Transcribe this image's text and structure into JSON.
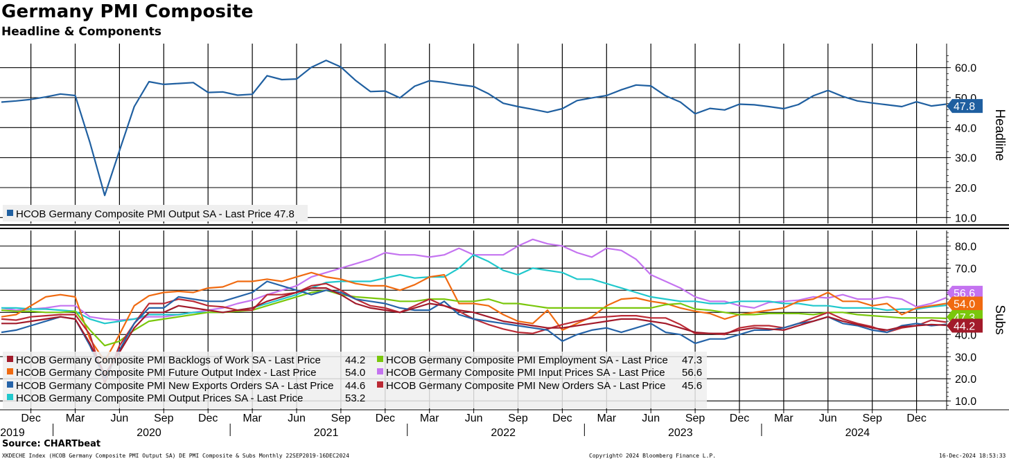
{
  "title": "Germany PMI Composite",
  "subtitle": "Headline & Components",
  "source": "Source: CHARTbeat",
  "footer": {
    "left": "XKDECHE Index (HCOB Germany Composite PMI Output SA) DE PMI Composite & Subs  Monthly 22SEP2019-16DEC2024",
    "center": "Copyright© 2024 Bloomberg Finance L.P.",
    "right": "16-Dec-2024 18:53:33"
  },
  "colors": {
    "headline": "#1f5fa0",
    "backlogs": "#a21a2a",
    "employment": "#7ac70c",
    "future_output": "#f06a10",
    "input_prices": "#c473f0",
    "new_exports": "#2563a8",
    "new_orders": "#bb2a35",
    "output_prices": "#21c8cc"
  },
  "x_axis": {
    "month_ticks": [
      {
        "label": "Dec",
        "index": 2
      },
      {
        "label": "Mar",
        "index": 5
      },
      {
        "label": "Jun",
        "index": 8
      },
      {
        "label": "Sep",
        "index": 11
      },
      {
        "label": "Dec",
        "index": 14
      },
      {
        "label": "Mar",
        "index": 17
      },
      {
        "label": "Jun",
        "index": 20
      },
      {
        "label": "Sep",
        "index": 23
      },
      {
        "label": "Dec",
        "index": 26
      },
      {
        "label": "Mar",
        "index": 29
      },
      {
        "label": "Jun",
        "index": 32
      },
      {
        "label": "Sep",
        "index": 35
      },
      {
        "label": "Dec",
        "index": 38
      },
      {
        "label": "Mar",
        "index": 41
      },
      {
        "label": "Jun",
        "index": 44
      },
      {
        "label": "Sep",
        "index": 47
      },
      {
        "label": "Dec",
        "index": 50
      },
      {
        "label": "Mar",
        "index": 53
      },
      {
        "label": "Jun",
        "index": 56
      },
      {
        "label": "Sep",
        "index": 59
      },
      {
        "label": "Dec",
        "index": 62
      }
    ],
    "year_labels": [
      {
        "label": "2019",
        "index": 0
      },
      {
        "label": "2020",
        "index": 8
      },
      {
        "label": "2021",
        "index": 20
      },
      {
        "label": "2022",
        "index": 32
      },
      {
        "label": "2023",
        "index": 44
      },
      {
        "label": "2024",
        "index": 56
      }
    ]
  },
  "chart_data": [
    {
      "type": "line",
      "panel": "top",
      "axis_title": "Headline",
      "ylim": [
        8,
        68
      ],
      "yticks": [
        "10.0",
        "20.0",
        "30.0",
        "40.0",
        "50.0",
        "60.0"
      ],
      "x_start": "Sep 2019",
      "x_end": "Dec 2024",
      "series": [
        {
          "key": "headline",
          "name": "HCOB Germany Composite PMI Output SA - Last Price 47.8",
          "last_label": "47.8",
          "values": [
            48.5,
            48.9,
            49.4,
            50.2,
            51.2,
            50.7,
            35.0,
            17.4,
            32.3,
            47.0,
            55.3,
            54.4,
            54.7,
            55.0,
            51.7,
            51.9,
            50.8,
            51.1,
            57.3,
            56.0,
            56.2,
            60.1,
            62.4,
            60.2,
            55.7,
            52.0,
            52.2,
            49.9,
            53.8,
            55.6,
            55.1,
            54.3,
            53.7,
            51.3,
            48.1,
            47.0,
            46.1,
            45.1,
            46.3,
            49.0,
            49.9,
            50.7,
            52.6,
            54.2,
            53.9,
            50.6,
            48.5,
            44.6,
            46.4,
            45.9,
            47.8,
            47.6,
            47.0,
            46.3,
            47.7,
            50.6,
            52.4,
            50.4,
            48.9,
            48.2,
            47.6,
            47.0,
            48.6,
            47.2,
            47.8
          ],
          "last_label_y": 47.2
        }
      ]
    },
    {
      "type": "line",
      "panel": "bottom",
      "axis_title": "Subs",
      "ylim": [
        6,
        87
      ],
      "yticks": [
        "10.0",
        "20.0",
        "30.0",
        "40.0",
        "50.0",
        "60.0",
        "70.0",
        "80.0"
      ],
      "x_start": "Sep 2019",
      "x_end": "Dec 2024",
      "legend": [
        {
          "key": "backlogs",
          "name": "HCOB Germany Composite PMI Backlogs of Work SA - Last Price",
          "value": "44.2"
        },
        {
          "key": "employment",
          "name": "HCOB Germany Composite PMI Employment SA - Last Price",
          "value": "47.3"
        },
        {
          "key": "future_output",
          "name": "HCOB Germany Composite PMI Future Output Index - Last Price",
          "value": "54.0"
        },
        {
          "key": "input_prices",
          "name": "HCOB Germany Composite PMI Input Prices SA - Last Price",
          "value": "56.6"
        },
        {
          "key": "new_exports",
          "name": "HCOB Germany Composite PMI New Exports Orders SA - Last Price",
          "value": "44.6"
        },
        {
          "key": "new_orders",
          "name": "HCOB Germany Composite PMI New Orders SA - Last Price",
          "value": "45.6"
        },
        {
          "key": "output_prices",
          "name": "HCOB Germany Composite PMI Output Prices SA - Last Price",
          "value": "53.2"
        }
      ],
      "last_labels": [
        {
          "key": "input_prices",
          "text": "56.6",
          "y": 58.9
        },
        {
          "key": "future_output",
          "text": "54.0",
          "y": 54.0
        },
        {
          "key": "employment",
          "text": "47.3",
          "y": 47.9
        },
        {
          "key": "backlogs",
          "text": "44.2",
          "y": 44.0
        }
      ],
      "series": [
        {
          "key": "input_prices",
          "values": [
            52.0,
            51.0,
            51.5,
            52.0,
            53.0,
            53.0,
            48.0,
            47.0,
            46.5,
            47.0,
            48.0,
            48.0,
            49.0,
            50.0,
            51.0,
            52.0,
            54.0,
            55.5,
            58.0,
            60.0,
            62.0,
            66.0,
            68.0,
            70.0,
            72.0,
            74.0,
            77.0,
            76.0,
            76.0,
            75.0,
            76.0,
            79.0,
            76.0,
            76.0,
            76.0,
            80.0,
            83.0,
            81.0,
            80.0,
            77.0,
            75.0,
            79.0,
            78.0,
            74.0,
            67.0,
            64.0,
            61.0,
            57.0,
            55.0,
            55.0,
            53.0,
            52.0,
            54.5,
            55.0,
            55.5,
            57.0,
            56.5,
            58.0,
            56.0,
            56.0,
            57.0,
            56.0,
            52.5,
            54.0,
            56.6
          ]
        },
        {
          "key": "output_prices",
          "values": [
            52.0,
            52.0,
            51.5,
            51.5,
            51.0,
            50.5,
            47.0,
            45.0,
            46.0,
            47.0,
            49.0,
            49.0,
            49.0,
            50.0,
            50.0,
            50.0,
            51.0,
            52.0,
            54.0,
            56.0,
            58.0,
            61.0,
            63.5,
            64.0,
            64.0,
            64.0,
            65.5,
            67.0,
            65.5,
            66.0,
            66.0,
            70.0,
            76.0,
            73.0,
            69.0,
            67.0,
            70.0,
            69.0,
            68.0,
            65.0,
            65.0,
            63.0,
            61.0,
            59.0,
            57.0,
            56.0,
            55.0,
            55.0,
            54.0,
            54.0,
            55.0,
            55.0,
            55.0,
            54.0,
            54.0,
            53.0,
            53.0,
            52.0,
            52.0,
            52.0,
            51.0,
            51.5,
            51.5,
            52.5,
            53.2
          ]
        },
        {
          "key": "future_output",
          "values": [
            48.0,
            49.0,
            53.0,
            57.0,
            58.0,
            57.0,
            38.0,
            28.0,
            40.0,
            53.0,
            57.5,
            59.0,
            59.5,
            59.0,
            61.0,
            61.5,
            64.0,
            64.0,
            65.0,
            64.0,
            66.0,
            68.0,
            66.0,
            65.0,
            63.0,
            62.0,
            62.0,
            60.0,
            62.5,
            66.0,
            67.0,
            54.0,
            54.0,
            53.0,
            49.0,
            46.0,
            45.0,
            51.0,
            42.0,
            45.0,
            48.0,
            53.0,
            56.0,
            56.5,
            55.0,
            54.0,
            52.0,
            50.5,
            49.5,
            47.0,
            49.0,
            50.0,
            51.0,
            52.0,
            55.0,
            56.0,
            59.0,
            55.0,
            55.0,
            53.0,
            54.0,
            49.0,
            52.0,
            53.0,
            54.0
          ]
        },
        {
          "key": "employment",
          "values": [
            51.0,
            50.5,
            50.5,
            50.0,
            50.0,
            50.5,
            42.0,
            35.0,
            37.0,
            42.0,
            46.0,
            47.0,
            48.0,
            49.0,
            50.0,
            50.0,
            50.5,
            51.0,
            53.0,
            55.0,
            57.0,
            59.0,
            60.0,
            58.0,
            57.0,
            56.5,
            56.0,
            55.0,
            55.0,
            56.0,
            56.0,
            55.0,
            55.0,
            56.0,
            54.0,
            54.0,
            53.0,
            52.0,
            52.0,
            52.0,
            52.0,
            52.0,
            52.0,
            52.0,
            52.0,
            53.5,
            54.0,
            51.5,
            51.0,
            50.0,
            49.0,
            49.0,
            49.5,
            49.5,
            49.5,
            49.0,
            50.0,
            50.0,
            49.0,
            48.5,
            48.0,
            47.5,
            47.5,
            47.5,
            47.3
          ]
        },
        {
          "key": "new_orders",
          "values": [
            47.0,
            46.5,
            48.0,
            48.5,
            49.0,
            49.0,
            40.0,
            18.0,
            35.0,
            45.0,
            54.0,
            54.0,
            56.0,
            55.0,
            53.0,
            52.5,
            51.0,
            51.0,
            58.0,
            58.0,
            59.0,
            62.0,
            63.0,
            60.0,
            56.0,
            53.0,
            52.0,
            50.0,
            53.0,
            56.0,
            53.0,
            50.5,
            47.0,
            44.5,
            42.5,
            41.0,
            40.5,
            42.5,
            44.5,
            46.0,
            47.5,
            48.0,
            48.5,
            48.5,
            47.5,
            47.5,
            44.5,
            40.5,
            40.5,
            40.0,
            43.0,
            44.0,
            44.0,
            43.0,
            45.0,
            47.5,
            50.0,
            47.0,
            45.0,
            43.5,
            41.0,
            43.0,
            44.0,
            46.5,
            45.6
          ]
        },
        {
          "key": "new_exports",
          "values": [
            41.0,
            42.0,
            44.0,
            46.0,
            48.0,
            47.0,
            35.0,
            20.0,
            33.0,
            45.0,
            52.0,
            52.0,
            57.0,
            56.0,
            55.0,
            55.0,
            57.0,
            59.0,
            64.0,
            62.0,
            60.0,
            58.0,
            60.0,
            59.0,
            56.0,
            55.0,
            54.0,
            52.0,
            51.0,
            51.0,
            55.0,
            49.0,
            47.0,
            46.0,
            45.0,
            44.0,
            43.0,
            42.0,
            37.0,
            40.0,
            42.0,
            43.0,
            41.0,
            43.0,
            45.0,
            41.0,
            40.0,
            36.0,
            38.0,
            38.0,
            40.0,
            42.0,
            42.0,
            43.0,
            45.0,
            46.0,
            48.0,
            45.0,
            44.0,
            42.0,
            41.0,
            44.0,
            45.0,
            44.0,
            44.6
          ]
        },
        {
          "key": "backlogs",
          "values": [
            45.0,
            45.0,
            46.0,
            47.0,
            48.0,
            47.0,
            36.0,
            22.0,
            32.0,
            43.0,
            50.0,
            50.0,
            53.0,
            52.0,
            51.0,
            50.0,
            51.0,
            52.0,
            55.0,
            57.0,
            59.0,
            61.0,
            61.0,
            58.0,
            54.0,
            52.0,
            51.0,
            50.0,
            52.0,
            54.0,
            53.0,
            51.0,
            50.0,
            48.0,
            46.0,
            45.0,
            44.0,
            43.0,
            43.0,
            44.0,
            45.0,
            46.0,
            47.0,
            47.0,
            46.0,
            45.0,
            43.0,
            41.0,
            40.5,
            40.5,
            42.0,
            43.0,
            42.5,
            42.0,
            44.0,
            46.0,
            48.0,
            46.0,
            44.5,
            43.0,
            42.0,
            43.5,
            44.0,
            44.5,
            44.2
          ]
        }
      ]
    }
  ]
}
